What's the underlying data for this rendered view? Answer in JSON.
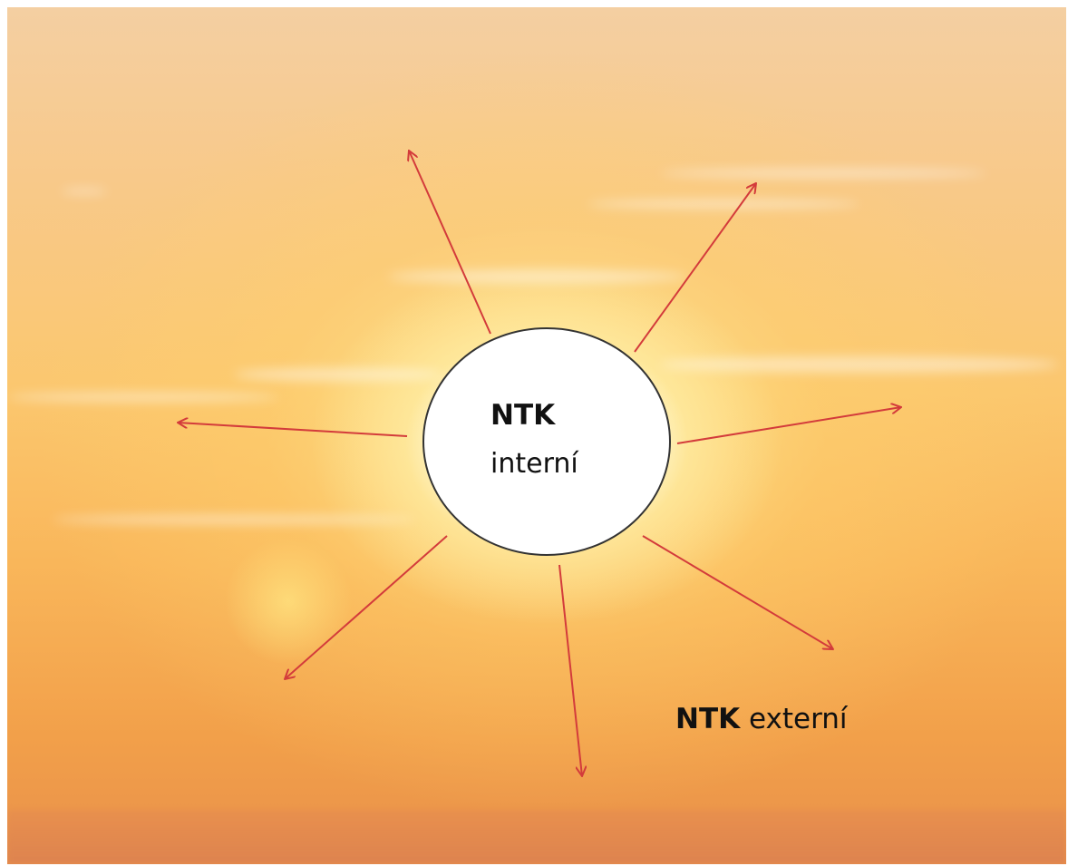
{
  "center": {
    "title": "NTK",
    "subtitle": "interní"
  },
  "outer": {
    "title": "NTK",
    "subtitle": "externí"
  }
}
